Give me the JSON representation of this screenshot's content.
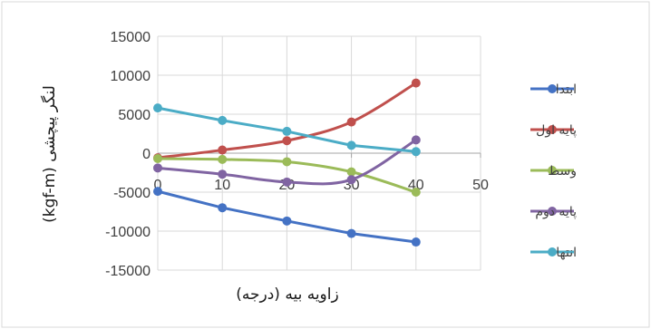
{
  "chart_data": {
    "type": "line",
    "x": [
      0,
      10,
      20,
      30,
      40
    ],
    "xlabel": "زاویه بیه (درجه)",
    "ylabel": "لنگر پیچشی (kgf-m)",
    "xlim": [
      0,
      50
    ],
    "ylim": [
      -15000,
      15000
    ],
    "xticks": [
      0,
      10,
      20,
      30,
      40,
      50
    ],
    "yticks": [
      -15000,
      -10000,
      -5000,
      0,
      5000,
      10000,
      15000
    ],
    "grid": true,
    "legend_position": "right",
    "series": [
      {
        "name": "ابتدا",
        "color": "#4472C4",
        "values": [
          -4900,
          -7000,
          -8700,
          -10300,
          -11400
        ],
        "smooth": false
      },
      {
        "name": "پایه اول",
        "color": "#C0504D",
        "values": [
          -600,
          400,
          1600,
          4000,
          9000
        ],
        "smooth": true
      },
      {
        "name": "وسط",
        "color": "#9BBB59",
        "values": [
          -700,
          -800,
          -1100,
          -2400,
          -5000
        ],
        "smooth": true
      },
      {
        "name": "پایه دوم",
        "color": "#8064A2",
        "values": [
          -1900,
          -2700,
          -3700,
          -3400,
          1700
        ],
        "smooth": true
      },
      {
        "name": "انتها",
        "color": "#4BACC6",
        "values": [
          5800,
          4200,
          2800,
          1000,
          200
        ],
        "smooth": false
      }
    ]
  }
}
